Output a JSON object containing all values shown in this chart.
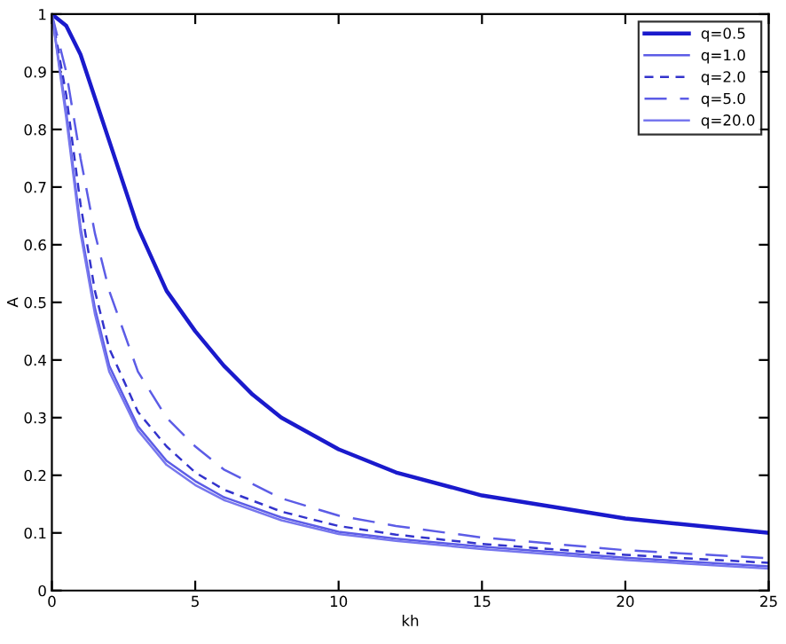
{
  "chart_data": {
    "type": "line",
    "xlabel": "kh",
    "ylabel": "A",
    "xlim": [
      0,
      25
    ],
    "ylim": [
      0,
      1
    ],
    "xticks": [
      0,
      5,
      10,
      15,
      20,
      25
    ],
    "yticks": [
      0,
      {
        "value": 0.1,
        "label": "0.1"
      },
      {
        "value": 0.2,
        "label": "0.2"
      },
      {
        "value": 0.3,
        "label": "0.3"
      },
      {
        "value": 0.4,
        "label": "0.4"
      },
      {
        "value": 0.5,
        "label": "0.5"
      },
      {
        "value": 0.6,
        "label": "0.6"
      },
      {
        "value": 0.7,
        "label": "0.7"
      },
      {
        "value": 0.8,
        "label": "0.8"
      },
      {
        "value": 0.9,
        "label": "0.9"
      },
      1
    ],
    "legend": "top right",
    "grid": false,
    "series": [
      {
        "name": "q=0.5",
        "color": "#1a1acc",
        "line_style": "solid",
        "x": [
          0,
          0.5,
          1,
          2,
          3,
          4,
          5,
          6,
          7,
          8,
          10,
          12,
          15,
          20,
          25
        ],
        "values": [
          1,
          0.98,
          0.93,
          0.78,
          0.63,
          0.52,
          0.45,
          0.39,
          0.34,
          0.3,
          0.245,
          0.205,
          0.165,
          0.125,
          0.1
        ]
      },
      {
        "name": "q=1.0",
        "color": "#5c5ce6",
        "line_style": "solid",
        "x": [
          0,
          0.5,
          1,
          1.5,
          2,
          3,
          4,
          5,
          6,
          8,
          10,
          12,
          15,
          20,
          25
        ],
        "values": [
          1,
          0.83,
          0.63,
          0.49,
          0.39,
          0.285,
          0.225,
          0.19,
          0.162,
          0.127,
          0.102,
          0.09,
          0.076,
          0.057,
          0.042
        ]
      },
      {
        "name": "q=2.0",
        "color": "#3333cc",
        "line_style": "dashed",
        "x": [
          0,
          0.5,
          1,
          1.5,
          2,
          3,
          4,
          5,
          6,
          8,
          10,
          12,
          15,
          20,
          25
        ],
        "values": [
          1,
          0.86,
          0.67,
          0.52,
          0.42,
          0.31,
          0.25,
          0.205,
          0.175,
          0.137,
          0.112,
          0.097,
          0.081,
          0.062,
          0.048
        ]
      },
      {
        "name": "q=5.0",
        "color": "#5c5ce6",
        "line_style": "longdash",
        "x": [
          0,
          0.5,
          1,
          1.5,
          2,
          3,
          4,
          5,
          6,
          8,
          10,
          12,
          15,
          20,
          25
        ],
        "values": [
          1,
          0.9,
          0.75,
          0.62,
          0.52,
          0.38,
          0.3,
          0.25,
          0.21,
          0.16,
          0.13,
          0.112,
          0.092,
          0.07,
          0.056
        ]
      },
      {
        "name": "q=20.0",
        "color": "#7777ee",
        "line_style": "solid",
        "x": [
          0,
          0.5,
          1,
          1.5,
          2,
          3,
          4,
          5,
          6,
          8,
          10,
          12,
          15,
          20,
          25
        ],
        "values": [
          1,
          0.82,
          0.62,
          0.48,
          0.38,
          0.278,
          0.218,
          0.183,
          0.157,
          0.122,
          0.098,
          0.086,
          0.072,
          0.053,
          0.038
        ]
      }
    ]
  }
}
